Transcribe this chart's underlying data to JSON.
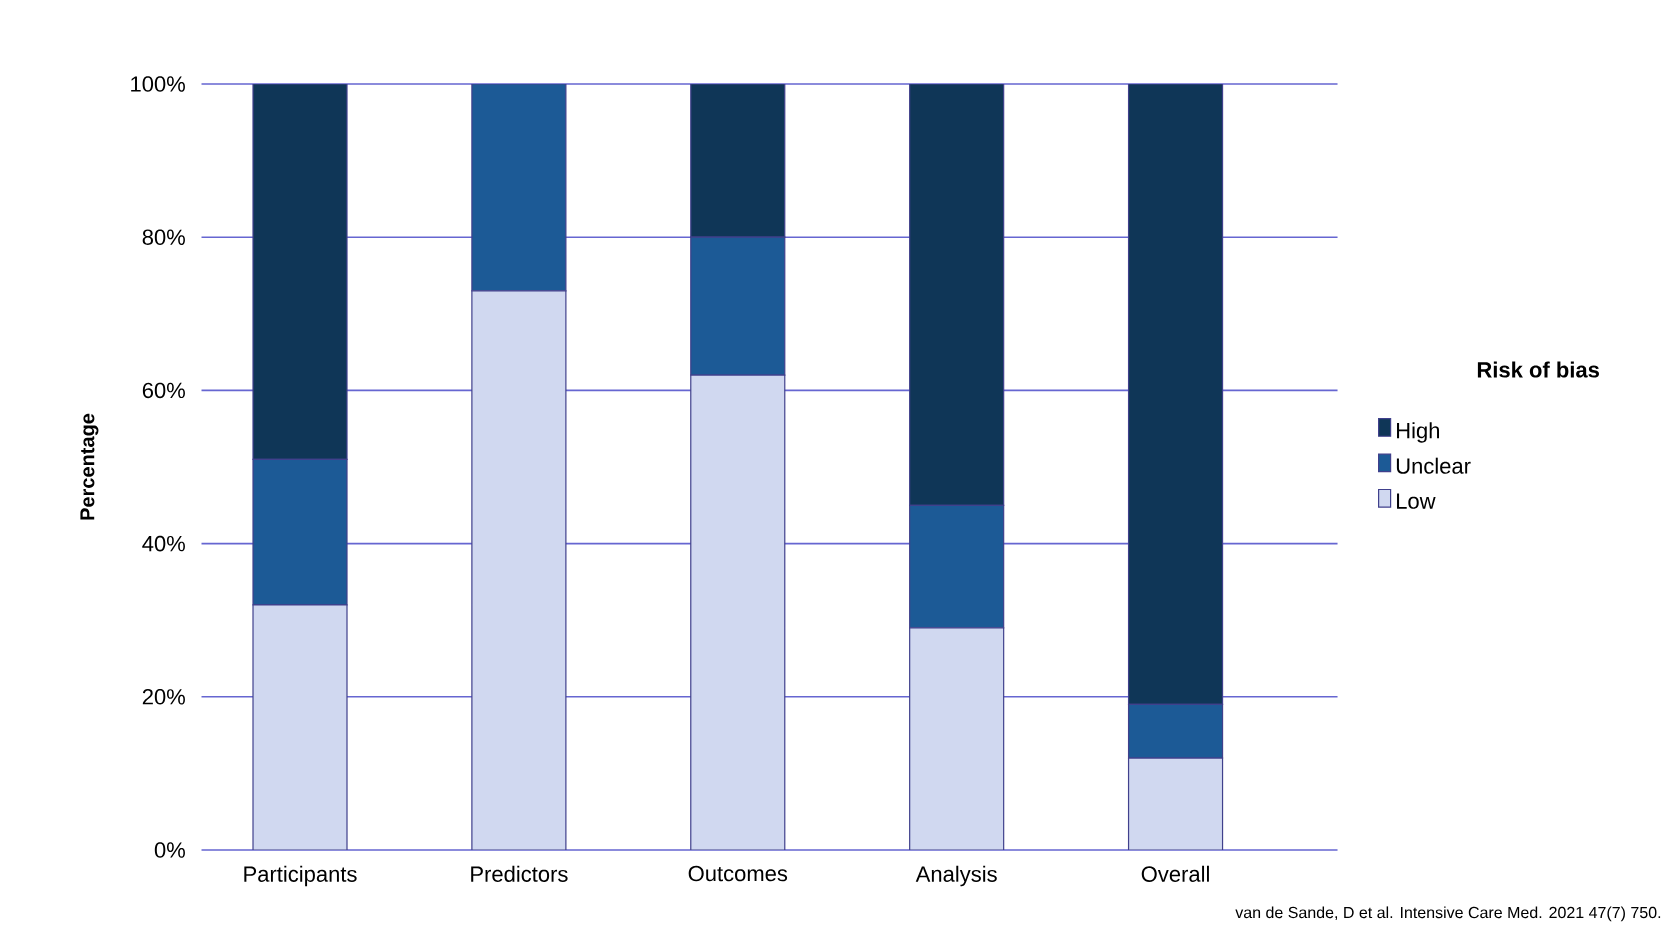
{
  "chart_data": {
    "type": "bar",
    "stacked": true,
    "ylabel": "Percentage",
    "legend_title": "Risk of bias",
    "legend": "right",
    "grid": "y",
    "categories": [
      "Participants",
      "Predictors",
      "Outcomes",
      "Analysis",
      "Overall"
    ],
    "series": [
      {
        "name": "Low",
        "color": "#d0d8f0",
        "values": [
          32,
          73,
          62,
          29,
          12
        ]
      },
      {
        "name": "Unclear",
        "color": "#1c5a96",
        "values": [
          19,
          27,
          18,
          16,
          7
        ]
      },
      {
        "name": "High",
        "color": "#0f3657",
        "values": [
          49,
          0,
          20,
          55,
          81
        ]
      }
    ],
    "ylim": [
      0,
      100
    ],
    "yticks": [
      {
        "value": 0,
        "label": "0%"
      },
      {
        "value": 20,
        "label": "20%"
      },
      {
        "value": 40,
        "label": "40%"
      },
      {
        "value": 60,
        "label": "60%"
      },
      {
        "value": 80,
        "label": "80%"
      },
      {
        "value": 100,
        "label": "100%"
      }
    ],
    "annotations": [
      "van de Sande, D et al. Intensive Care Med. 2021 47(7) 750."
    ]
  }
}
